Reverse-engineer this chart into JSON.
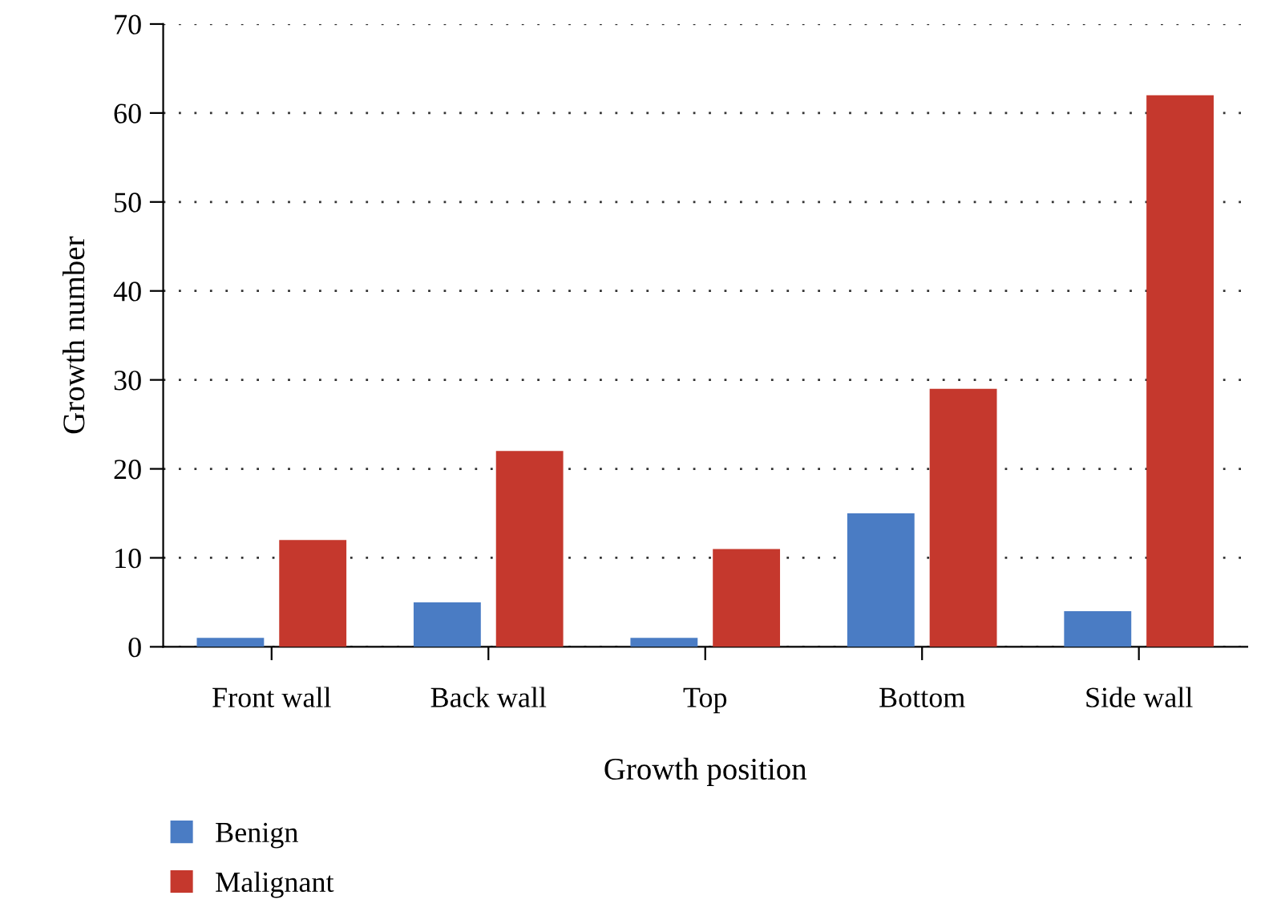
{
  "chart_data": {
    "type": "bar",
    "xlabel": "Growth position",
    "ylabel": "Growth number",
    "categories": [
      "Front wall",
      "Back wall",
      "Top",
      "Bottom",
      "Side wall"
    ],
    "series": [
      {
        "name": "Benign",
        "color": "#4a7cc4",
        "values": [
          1,
          5,
          1,
          15,
          4
        ]
      },
      {
        "name": "Malignant",
        "color": "#c5382d",
        "values": [
          12,
          22,
          11,
          29,
          62
        ]
      }
    ],
    "ylim": [
      0,
      70
    ],
    "yticks": [
      0,
      10,
      20,
      30,
      40,
      50,
      60,
      70
    ],
    "grid": "y",
    "legend": "bottom"
  }
}
